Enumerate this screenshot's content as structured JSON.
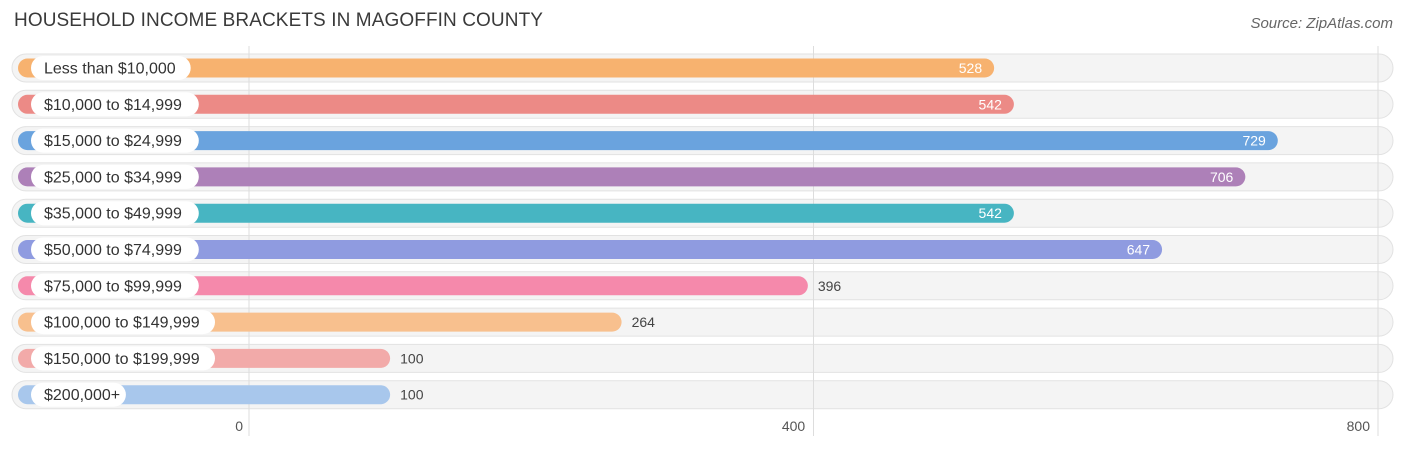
{
  "header": {
    "title": "HOUSEHOLD INCOME BRACKETS IN MAGOFFIN COUNTY",
    "source": "Source: ZipAtlas.com"
  },
  "chart_data": {
    "type": "bar",
    "orientation": "horizontal",
    "title": "HOUSEHOLD INCOME BRACKETS IN MAGOFFIN COUNTY",
    "xlabel": "",
    "ylabel": "",
    "xlim": [
      0,
      800
    ],
    "ticks": [
      0,
      400,
      800
    ],
    "tick_labels": [
      "0",
      "400",
      "800"
    ],
    "grid": true,
    "categories": [
      "Less than $10,000",
      "$10,000 to $14,999",
      "$15,000 to $24,999",
      "$25,000 to $34,999",
      "$35,000 to $49,999",
      "$50,000 to $74,999",
      "$75,000 to $99,999",
      "$100,000 to $149,999",
      "$150,000 to $199,999",
      "$200,000+"
    ],
    "values": [
      528,
      542,
      729,
      706,
      542,
      647,
      396,
      264,
      100,
      100
    ],
    "value_labels": [
      "528",
      "542",
      "729",
      "706",
      "542",
      "647",
      "396",
      "264",
      "100",
      "100"
    ],
    "colors": [
      "#f7b26f",
      "#ec8a86",
      "#6aa3de",
      "#ad80b8",
      "#47b5c2",
      "#8f9be0",
      "#f589ab",
      "#f8c08e",
      "#f2aaa9",
      "#a8c7ec"
    ]
  }
}
